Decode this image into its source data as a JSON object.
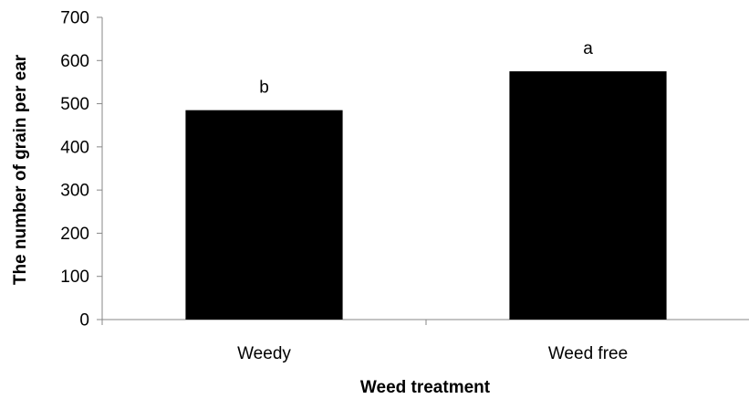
{
  "chart_data": {
    "type": "bar",
    "categories": [
      "Weedy",
      "Weed free"
    ],
    "values": [
      485,
      575
    ],
    "data_labels": [
      "b",
      "a"
    ],
    "title": "",
    "xlabel": "Weed treatment",
    "ylabel": "The number of grain per ear",
    "ylim": [
      0,
      700
    ],
    "yticks": [
      "0",
      "100",
      "200",
      "300",
      "400",
      "500",
      "600",
      "700"
    ],
    "bar_color": "#000000",
    "grid": false,
    "legend": "none"
  }
}
